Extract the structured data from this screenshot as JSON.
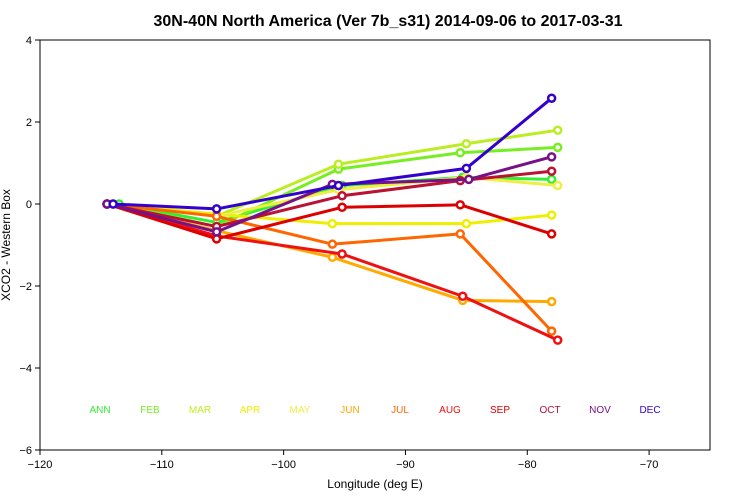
{
  "chart_data": {
    "type": "line",
    "title": "30N-40N North America (Ver 7b_s31)   2014-09-06 to 2017-03-31",
    "xlabel": "Longitude (deg E)",
    "ylabel": "XCO2 - Western Box",
    "xlim": [
      -120,
      -65
    ],
    "ylim": [
      -6,
      4
    ],
    "xticks": [
      -120,
      -110,
      -100,
      -90,
      -80,
      -70
    ],
    "yticks": [
      -6,
      -4,
      -2,
      0,
      2,
      4
    ],
    "grid": false,
    "legend_position": "bottom",
    "series": [
      {
        "name": "ANN",
        "color": "#33ee33",
        "x": [
          -113.5,
          -105.5,
          -95.2,
          -85.3,
          -78.0
        ],
        "values": [
          0.0,
          -0.45,
          0.45,
          0.65,
          0.6
        ]
      },
      {
        "name": "FEB",
        "color": "#77ee22",
        "x": [
          -114.0,
          -105.5,
          -95.5,
          -85.5,
          -77.5
        ],
        "values": [
          0.0,
          -0.55,
          0.85,
          1.25,
          1.38
        ]
      },
      {
        "name": "MAR",
        "color": "#bbee22",
        "x": [
          -114.0,
          -105.5,
          -95.5,
          -85.0,
          -77.5
        ],
        "values": [
          0.0,
          -0.3,
          0.97,
          1.47,
          1.8
        ]
      },
      {
        "name": "APR",
        "color": "#eeee00",
        "x": [
          -114.0,
          -105.5,
          -96.0,
          -85.0,
          -78.0
        ],
        "values": [
          0.0,
          -0.25,
          -0.48,
          -0.48,
          -0.27
        ]
      },
      {
        "name": "MAY",
        "color": "#eeee44",
        "x": [
          -114.0,
          -105.5,
          -95.5,
          -85.0,
          -77.5
        ],
        "values": [
          0.0,
          -0.3,
          0.35,
          0.65,
          0.45
        ]
      },
      {
        "name": "JUN",
        "color": "#ffaa00",
        "x": [
          -114.5,
          -105.5,
          -96.0,
          -85.3,
          -78.0
        ],
        "values": [
          0.0,
          -0.65,
          -1.3,
          -2.35,
          -2.38
        ]
      },
      {
        "name": "JUL",
        "color": "#ff6600",
        "x": [
          -114.5,
          -105.5,
          -96.0,
          -85.5,
          -78.0
        ],
        "values": [
          0.0,
          -0.3,
          -0.98,
          -0.73,
          -3.1
        ]
      },
      {
        "name": "AUG",
        "color": "#ee1111",
        "x": [
          -114.5,
          -105.5,
          -95.2,
          -85.3,
          -77.5
        ],
        "values": [
          0.0,
          -0.78,
          -1.22,
          -2.25,
          -3.32
        ]
      },
      {
        "name": "SEP",
        "color": "#dd0000",
        "x": [
          -114.5,
          -105.5,
          -95.2,
          -85.5,
          -78.0
        ],
        "values": [
          0.0,
          -0.85,
          -0.08,
          -0.02,
          -0.73
        ]
      },
      {
        "name": "OCT",
        "color": "#bb1133",
        "x": [
          -114.5,
          -105.5,
          -95.2,
          -85.5,
          -78.0
        ],
        "values": [
          0.0,
          -0.55,
          0.2,
          0.57,
          0.8
        ]
      },
      {
        "name": "NOV",
        "color": "#771188",
        "x": [
          -114.5,
          -105.5,
          -96.0,
          -84.8,
          -78.0
        ],
        "values": [
          0.0,
          -0.68,
          0.48,
          0.6,
          1.15
        ]
      },
      {
        "name": "DEC",
        "color": "#3300cc",
        "x": [
          -114.0,
          -105.5,
          -95.5,
          -85.0,
          -78.0
        ],
        "values": [
          0.0,
          -0.12,
          0.45,
          0.87,
          2.58
        ]
      }
    ]
  }
}
